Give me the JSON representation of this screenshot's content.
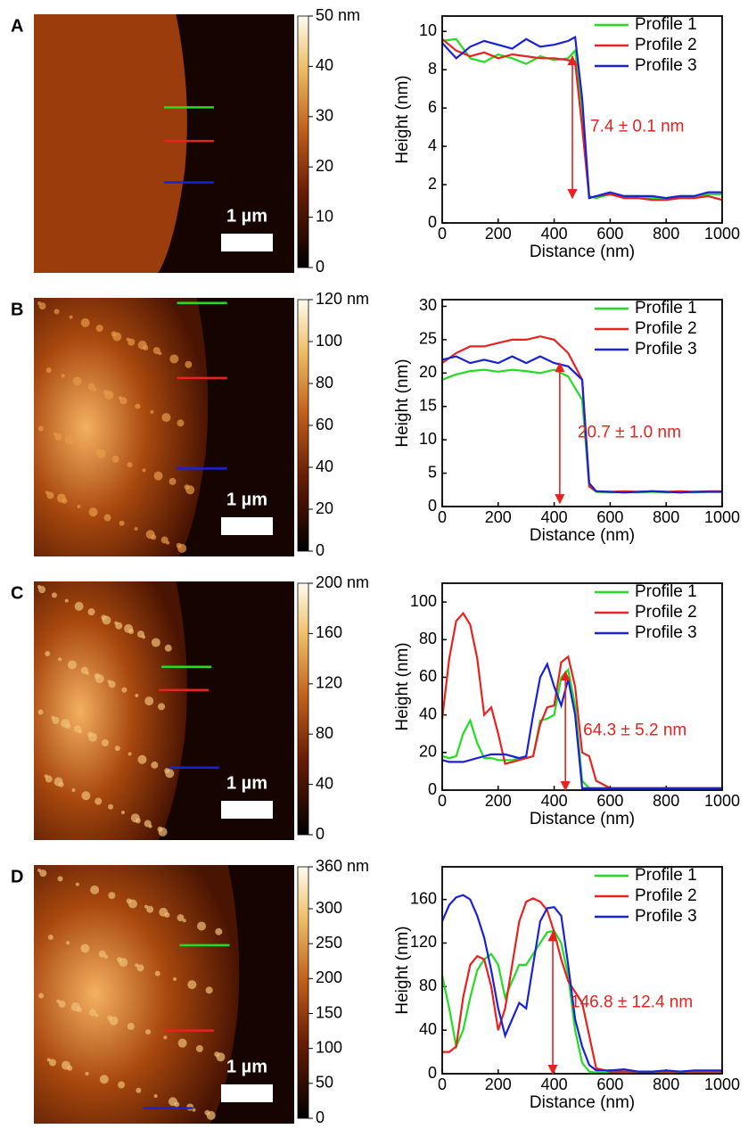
{
  "chart_data": [
    {
      "type": "line",
      "panel": "A",
      "xlabel": "Distance (nm)",
      "ylabel": "Height (nm)",
      "scalebar_label": "1 µm",
      "annotation": "7.4 ± 0.1 nm",
      "arrow": {
        "x": 465,
        "from": 1.3,
        "to": 8.7
      },
      "colorbar": {
        "lim": [
          0,
          50
        ],
        "ticks": [
          0,
          10,
          20,
          30,
          40,
          {
            "value": 50,
            "label": "50 nm"
          }
        ]
      },
      "xlim": [
        0,
        1000
      ],
      "xticks": [
        0,
        200,
        400,
        600,
        800,
        1000
      ],
      "ylim": [
        0,
        10.8
      ],
      "yticks": [
        0,
        2,
        4,
        6,
        8,
        10
      ],
      "x": [
        0,
        50,
        100,
        150,
        200,
        250,
        300,
        350,
        400,
        450,
        475,
        500,
        525,
        550,
        600,
        650,
        700,
        750,
        800,
        850,
        900,
        950,
        1000
      ],
      "series": [
        {
          "name": "Profile 1",
          "color": "#22dd22",
          "values": [
            9.5,
            9.6,
            8.6,
            8.4,
            8.8,
            8.6,
            8.3,
            8.7,
            8.5,
            8.6,
            9.0,
            6.0,
            1.4,
            1.3,
            1.5,
            1.4,
            1.4,
            1.3,
            1.3,
            1.4,
            1.4,
            1.5,
            1.5
          ]
        },
        {
          "name": "Profile 2",
          "color": "#e8221e",
          "values": [
            9.6,
            9.0,
            8.7,
            8.9,
            8.6,
            8.8,
            8.7,
            8.6,
            8.6,
            8.5,
            8.4,
            5.0,
            1.3,
            1.4,
            1.5,
            1.3,
            1.3,
            1.2,
            1.2,
            1.3,
            1.3,
            1.4,
            1.2
          ]
        },
        {
          "name": "Profile 3",
          "color": "#1a22d8",
          "values": [
            9.4,
            8.6,
            9.2,
            9.5,
            9.3,
            9.1,
            9.6,
            9.2,
            9.3,
            9.5,
            9.7,
            6.5,
            1.3,
            1.4,
            1.6,
            1.4,
            1.4,
            1.4,
            1.3,
            1.4,
            1.4,
            1.6,
            1.6
          ]
        }
      ]
    },
    {
      "type": "line",
      "panel": "B",
      "xlabel": "Distance (nm)",
      "ylabel": "Height (nm)",
      "scalebar_label": "1 µm",
      "annotation": "20.7 ± 1.0 nm",
      "arrow": {
        "x": 420,
        "from": 0.5,
        "to": 21.5
      },
      "colorbar": {
        "lim": [
          0,
          120
        ],
        "ticks": [
          0,
          20,
          40,
          60,
          80,
          100,
          {
            "value": 120,
            "label": "120 nm"
          }
        ]
      },
      "xlim": [
        0,
        1000
      ],
      "xticks": [
        0,
        200,
        400,
        600,
        800,
        1000
      ],
      "ylim": [
        0,
        31
      ],
      "yticks": [
        0,
        5,
        10,
        15,
        20,
        25,
        30
      ],
      "x": [
        0,
        50,
        100,
        150,
        200,
        250,
        300,
        350,
        400,
        450,
        500,
        525,
        550,
        600,
        650,
        700,
        750,
        800,
        850,
        900,
        950,
        1000
      ],
      "series": [
        {
          "name": "Profile 1",
          "color": "#22dd22",
          "values": [
            19,
            19.8,
            20.3,
            20.5,
            20.2,
            20.5,
            20.3,
            20.0,
            20.5,
            19.5,
            16,
            3,
            2.2,
            2.1,
            2.2,
            2.1,
            2.2,
            2.1,
            2.2,
            2.1,
            2.2,
            2.2
          ]
        },
        {
          "name": "Profile 2",
          "color": "#e8221e",
          "values": [
            21.5,
            23,
            24,
            24,
            24.5,
            25,
            25,
            25.5,
            25,
            23,
            19,
            3,
            2.3,
            2.2,
            2.3,
            2.2,
            2.3,
            2.2,
            2.3,
            2.2,
            2.3,
            2.3
          ]
        },
        {
          "name": "Profile 3",
          "color": "#1a22d8",
          "values": [
            22,
            22.5,
            21.5,
            22,
            21.5,
            22.5,
            21.5,
            22.5,
            21.5,
            21,
            19,
            3.5,
            2.3,
            2.2,
            2.1,
            2.2,
            2.3,
            2.2,
            2.1,
            2.2,
            2.2,
            2.2
          ]
        }
      ]
    },
    {
      "type": "line",
      "panel": "C",
      "xlabel": "Distance (nm)",
      "ylabel": "Height (nm)",
      "scalebar_label": "1 µm",
      "annotation": "64.3 ± 5.2 nm",
      "arrow": {
        "x": 440,
        "from": 0,
        "to": 63
      },
      "colorbar": {
        "lim": [
          0,
          200
        ],
        "ticks": [
          0,
          40,
          80,
          120,
          160,
          {
            "value": 200,
            "label": "200 nm"
          }
        ]
      },
      "xlim": [
        0,
        1000
      ],
      "xticks": [
        0,
        200,
        400,
        600,
        800,
        1000
      ],
      "ylim": [
        0,
        110
      ],
      "yticks": [
        0,
        20,
        40,
        60,
        80,
        100
      ],
      "x": [
        0,
        25,
        50,
        75,
        100,
        125,
        150,
        175,
        200,
        225,
        250,
        275,
        300,
        325,
        350,
        375,
        400,
        425,
        450,
        475,
        500,
        525,
        550,
        600,
        650,
        700,
        750,
        800,
        850,
        900,
        950,
        1000
      ],
      "series": [
        {
          "name": "Profile 1",
          "color": "#22dd22",
          "values": [
            18,
            17,
            18,
            30,
            37,
            25,
            17,
            17,
            16,
            16,
            16,
            17,
            17,
            18,
            37,
            38,
            40,
            60,
            64,
            45,
            5,
            1,
            1,
            1,
            1,
            1,
            1,
            1,
            1,
            1,
            1,
            1
          ]
        },
        {
          "name": "Profile 2",
          "color": "#e8221e",
          "values": [
            38,
            70,
            90,
            94,
            88,
            70,
            40,
            44,
            30,
            14,
            15,
            16,
            17,
            18,
            35,
            44,
            45,
            68,
            71,
            55,
            20,
            18,
            5,
            1,
            1,
            1,
            1,
            1,
            1,
            1,
            1,
            1
          ]
        },
        {
          "name": "Profile 3",
          "color": "#1a22d8",
          "values": [
            16,
            15,
            15,
            15,
            16,
            17,
            18,
            19,
            19,
            19,
            18,
            17,
            18,
            40,
            60,
            67,
            55,
            45,
            59,
            40,
            1,
            1,
            1,
            1,
            1,
            1,
            1,
            1,
            1,
            1,
            1,
            1
          ]
        }
      ]
    },
    {
      "type": "line",
      "panel": "D",
      "xlabel": "Distance (nm)",
      "ylabel": "Height (nm)",
      "scalebar_label": "1 µm",
      "annotation": "146.8 ± 12.4 nm",
      "arrow": {
        "x": 395,
        "from": 0,
        "to": 130
      },
      "colorbar": {
        "lim": [
          0,
          360
        ],
        "ticks": [
          0,
          50,
          100,
          150,
          200,
          250,
          300,
          {
            "value": 360,
            "label": "360 nm"
          }
        ]
      },
      "xlim": [
        0,
        1000
      ],
      "xticks": [
        0,
        200,
        400,
        600,
        800,
        1000
      ],
      "ylim": [
        0,
        190
      ],
      "yticks": [
        0,
        40,
        80,
        120,
        160
      ],
      "x": [
        0,
        25,
        50,
        75,
        100,
        125,
        150,
        175,
        200,
        225,
        250,
        275,
        300,
        325,
        350,
        375,
        400,
        425,
        450,
        475,
        500,
        525,
        550,
        600,
        650,
        700,
        750,
        800,
        850,
        900,
        950,
        1000
      ],
      "series": [
        {
          "name": "Profile 1",
          "color": "#22dd22",
          "values": [
            90,
            60,
            25,
            40,
            70,
            95,
            105,
            110,
            100,
            70,
            85,
            100,
            100,
            110,
            120,
            130,
            131,
            120,
            90,
            40,
            10,
            2,
            1,
            1,
            2,
            1,
            1,
            1,
            1,
            1,
            1,
            1
          ]
        },
        {
          "name": "Profile 2",
          "color": "#e8221e",
          "values": [
            20,
            20,
            25,
            70,
            100,
            108,
            105,
            80,
            40,
            60,
            100,
            140,
            158,
            161,
            158,
            150,
            130,
            105,
            85,
            75,
            65,
            35,
            5,
            2,
            2,
            2,
            2,
            2,
            2,
            2,
            2,
            2
          ]
        },
        {
          "name": "Profile 3",
          "color": "#1a22d8",
          "values": [
            140,
            155,
            162,
            164,
            160,
            145,
            125,
            95,
            60,
            35,
            50,
            65,
            60,
            100,
            140,
            152,
            153,
            145,
            100,
            50,
            25,
            8,
            3,
            3,
            4,
            2,
            2,
            3,
            2,
            3,
            3,
            3
          ]
        }
      ]
    }
  ]
}
